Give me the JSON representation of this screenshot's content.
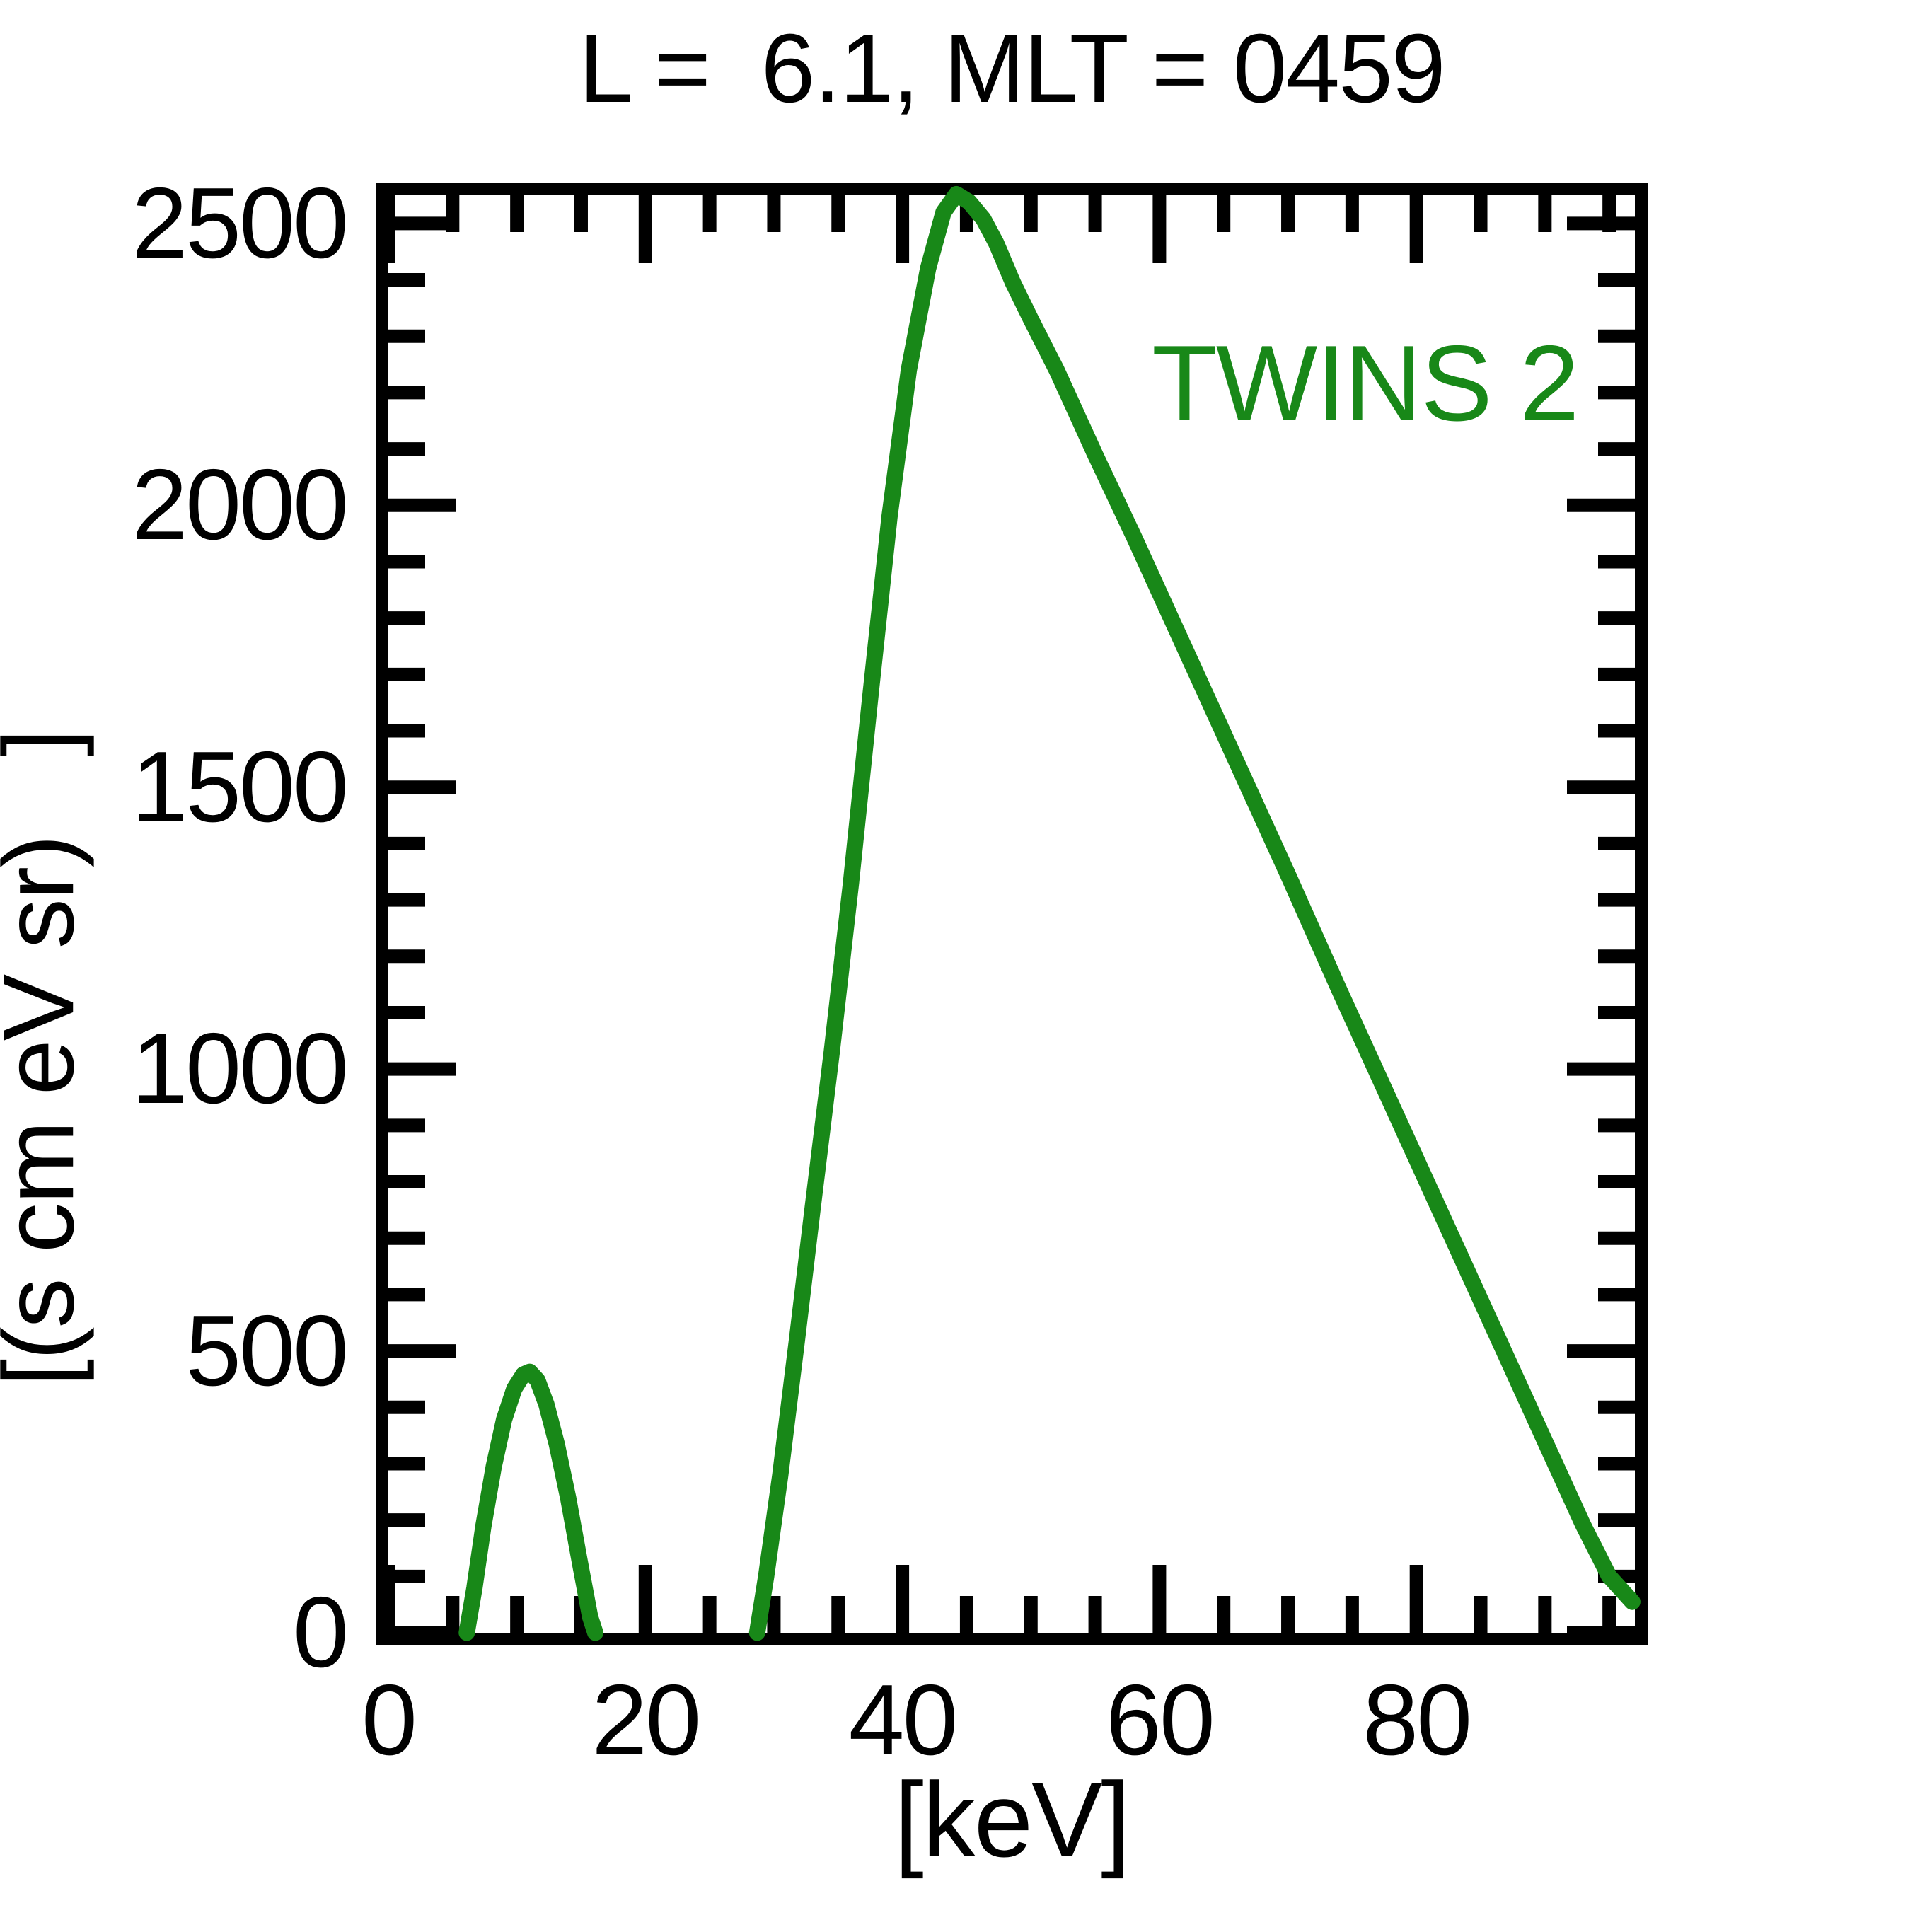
{
  "header": {
    "title": "L =  6.1, MLT = 0459"
  },
  "legend": {
    "label": "TWINS 2"
  },
  "axes": {
    "x": {
      "label": "[keV]",
      "tick_labels": [
        "0",
        "20",
        "40",
        "60",
        "80"
      ]
    },
    "y": {
      "label": "[(s cm eV sr)   ]",
      "tick_labels": [
        "0",
        "500",
        "1000",
        "1500",
        "2000",
        "2500"
      ]
    }
  },
  "colors": {
    "series_green": "#188818",
    "axis": "#000000",
    "background": "#ffffff"
  },
  "chart_data": {
    "type": "line",
    "title": "L =  6.1, MLT = 0459",
    "xlabel": "[keV]",
    "ylabel": "[(s cm eV sr)   ]",
    "xlim": [
      0,
      97
    ],
    "ylim": [
      0,
      2550
    ],
    "grid": false,
    "legend_position": "upper right",
    "x_major_ticks": [
      0,
      20,
      40,
      60,
      80
    ],
    "x_minor_step": 5,
    "y_major_ticks": [
      0,
      500,
      1000,
      1500,
      2000,
      2500
    ],
    "y_minor_step": 100,
    "series": [
      {
        "name": "TWINS 2",
        "color": "#188818",
        "segments": [
          [
            [
              6.1,
              0
            ],
            [
              6.7,
              80
            ],
            [
              7.4,
              190
            ],
            [
              8.2,
              295
            ],
            [
              9.0,
              378
            ],
            [
              9.8,
              433
            ],
            [
              10.5,
              458
            ],
            [
              11.0,
              463
            ],
            [
              11.6,
              448
            ],
            [
              12.3,
              405
            ],
            [
              13.1,
              335
            ],
            [
              14.0,
              238
            ],
            [
              14.9,
              125
            ],
            [
              15.7,
              28
            ],
            [
              16.1,
              0
            ]
          ],
          [
            [
              28.7,
              0
            ],
            [
              29.4,
              100
            ],
            [
              30.5,
              280
            ],
            [
              31.8,
              520
            ],
            [
              33.0,
              750
            ],
            [
              34.5,
              1030
            ],
            [
              36.0,
              1330
            ],
            [
              37.5,
              1660
            ],
            [
              39.0,
              1980
            ],
            [
              40.5,
              2240
            ],
            [
              42.0,
              2420
            ],
            [
              43.2,
              2520
            ],
            [
              44.2,
              2552
            ],
            [
              45.2,
              2538
            ],
            [
              46.3,
              2508
            ],
            [
              47.3,
              2465
            ],
            [
              48.6,
              2395
            ],
            [
              50.0,
              2330
            ],
            [
              52.0,
              2240
            ],
            [
              55.0,
              2090
            ],
            [
              58.0,
              1945
            ],
            [
              60.0,
              1845
            ],
            [
              63.0,
              1695
            ],
            [
              66.0,
              1545
            ],
            [
              70.0,
              1345
            ],
            [
              74.0,
              1140
            ],
            [
              78.0,
              940
            ],
            [
              82.0,
              740
            ],
            [
              86.0,
              540
            ],
            [
              90.0,
              340
            ],
            [
              93.0,
              190
            ],
            [
              95.0,
              100
            ],
            [
              96.8,
              55
            ]
          ]
        ]
      }
    ]
  }
}
